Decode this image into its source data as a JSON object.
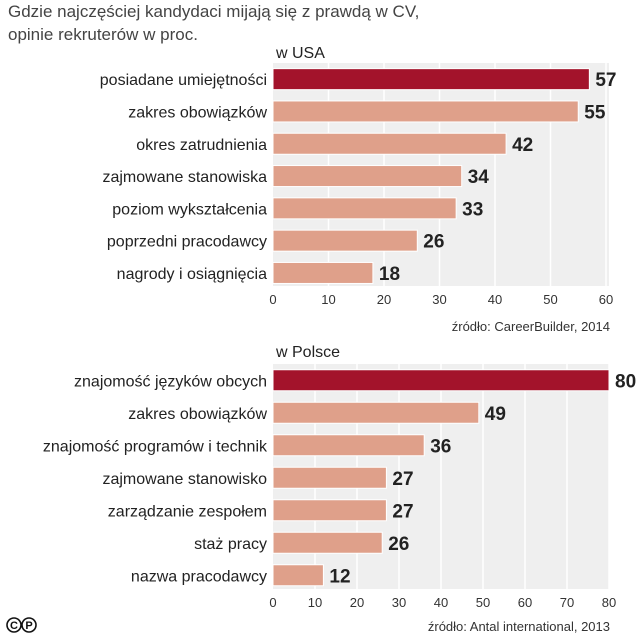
{
  "title_lines": [
    "Gdzie najczęściej kandydaci mijają się z prawdą w CV,",
    "opinie rekruterów w proc."
  ],
  "colors": {
    "highlight": "#a3132b",
    "bar": "#dfa08a",
    "panel": "#efefef",
    "grid": "#ffffff"
  },
  "chart_data": [
    {
      "type": "bar",
      "orientation": "horizontal",
      "subtitle": "w USA",
      "categories": [
        "posiadane umiejętności",
        "zakres obowiązków",
        "okres zatrudnienia",
        "zajmowane stanowiska",
        "poziom wykształcenia",
        "poprzedni pracodawcy",
        "nagrody i osiągnięcia"
      ],
      "values": [
        57,
        55,
        42,
        34,
        33,
        26,
        18
      ],
      "xlim": [
        0,
        60
      ],
      "xticks": [
        0,
        10,
        20,
        30,
        40,
        50,
        60
      ],
      "source": "źródło: CareerBuilder, 2014"
    },
    {
      "type": "bar",
      "orientation": "horizontal",
      "subtitle": "w Polsce",
      "categories": [
        "znajomość języków obcych",
        "zakres obowiązków",
        "znajomość programów i technik",
        "zajmowane stanowisko",
        "zarządzanie zespołem",
        "staż pracy",
        "nazwa pracodawcy"
      ],
      "values": [
        80,
        49,
        36,
        27,
        27,
        26,
        12
      ],
      "xlim": [
        0,
        80
      ],
      "xticks": [
        0,
        10,
        20,
        30,
        40,
        50,
        60,
        70,
        80
      ],
      "source": "źródło: Antal international, 2013"
    }
  ],
  "logo_text": "cp"
}
